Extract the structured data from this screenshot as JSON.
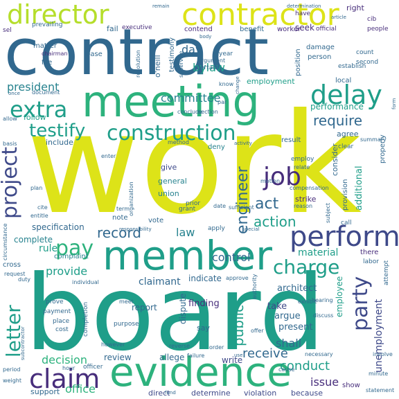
{
  "palette": {
    "yellow": "#dde318",
    "yellow_green": "#b5de2b",
    "lime": "#7ad151",
    "green": "#52c569",
    "teal_green": "#2db27d",
    "teal": "#1f9e89",
    "cyan_blue": "#26828e",
    "steel_blue": "#31688e",
    "indigo": "#3e4989",
    "purple": "#472d7b",
    "dark_purple": "#440154"
  },
  "words": [
    {
      "text": "work",
      "color": "yellow"
    },
    {
      "text": "board",
      "color": "teal"
    },
    {
      "text": "contract",
      "color": "steel_blue"
    },
    {
      "text": "meeting",
      "color": "teal_green"
    },
    {
      "text": "member",
      "color": "teal"
    },
    {
      "text": "evidence",
      "color": "teal_green"
    },
    {
      "text": "contractor",
      "color": "yellow"
    },
    {
      "text": "director",
      "color": "yellow_green"
    },
    {
      "text": "perform",
      "color": "indigo"
    },
    {
      "text": "construction",
      "color": "teal"
    },
    {
      "text": "project",
      "color": "indigo"
    },
    {
      "text": "claim",
      "color": "purple"
    },
    {
      "text": "delay",
      "color": "teal"
    },
    {
      "text": "extra",
      "color": "teal"
    },
    {
      "text": "testify",
      "color": "teal"
    },
    {
      "text": "job",
      "color": "purple"
    },
    {
      "text": "pay",
      "color": "teal_green"
    },
    {
      "text": "charge",
      "color": "teal"
    },
    {
      "text": "party",
      "color": "indigo"
    },
    {
      "text": "letter",
      "color": "teal"
    },
    {
      "text": "engineer",
      "color": "steel_blue"
    },
    {
      "text": "act",
      "color": "steel_blue"
    },
    {
      "text": "action",
      "color": "teal"
    },
    {
      "text": "public",
      "color": "teal"
    },
    {
      "text": "record",
      "color": "steel_blue"
    },
    {
      "text": "require",
      "color": "steel_blue"
    },
    {
      "text": "committee",
      "color": "cyan_blue"
    },
    {
      "text": "president",
      "color": "cyan_blue"
    },
    {
      "text": "employee",
      "color": "teal"
    },
    {
      "text": "unemployment",
      "color": "indigo"
    },
    {
      "text": "decision",
      "color": "teal_green"
    },
    {
      "text": "conduct",
      "color": "teal"
    },
    {
      "text": "receive",
      "color": "steel_blue"
    },
    {
      "text": "office",
      "color": "teal_green"
    },
    {
      "text": "issue",
      "color": "purple"
    },
    {
      "text": "shall",
      "color": "steel_blue"
    },
    {
      "text": "material",
      "color": "teal"
    },
    {
      "text": "control",
      "color": "steel_blue"
    },
    {
      "text": "law",
      "color": "cyan_blue"
    },
    {
      "text": "provide",
      "color": "teal"
    },
    {
      "text": "rule",
      "color": "teal"
    },
    {
      "text": "bylaw",
      "color": "teal"
    },
    {
      "text": "day",
      "color": "steel_blue"
    },
    {
      "text": "employment",
      "color": "teal"
    },
    {
      "text": "performance",
      "color": "teal"
    },
    {
      "text": "additional",
      "color": "teal"
    },
    {
      "text": "claimant",
      "color": "steel_blue"
    },
    {
      "text": "architect",
      "color": "steel_blue"
    },
    {
      "text": "finding",
      "color": "purple"
    },
    {
      "text": "argue",
      "color": "steel_blue"
    },
    {
      "text": "present",
      "color": "steel_blue"
    },
    {
      "text": "take",
      "color": "indigo"
    },
    {
      "text": "dispute",
      "color": "steel_blue"
    },
    {
      "text": "report",
      "color": "steel_blue"
    },
    {
      "text": "indicate",
      "color": "steel_blue"
    },
    {
      "text": "write",
      "color": "indigo"
    },
    {
      "text": "allege",
      "color": "steel_blue"
    },
    {
      "text": "review",
      "color": "steel_blue"
    },
    {
      "text": "support",
      "color": "steel_blue"
    },
    {
      "text": "determine",
      "color": "indigo"
    },
    {
      "text": "violation",
      "color": "indigo"
    },
    {
      "text": "because",
      "color": "indigo"
    },
    {
      "text": "direct",
      "color": "indigo"
    },
    {
      "text": "specification",
      "color": "steel_blue"
    },
    {
      "text": "complete",
      "color": "cyan_blue"
    },
    {
      "text": "complaint",
      "color": "cyan_blue"
    },
    {
      "text": "include",
      "color": "steel_blue"
    },
    {
      "text": "follow",
      "color": "teal"
    },
    {
      "text": "give",
      "color": "indigo"
    },
    {
      "text": "general",
      "color": "cyan_blue"
    },
    {
      "text": "union",
      "color": "cyan_blue"
    },
    {
      "text": "vote",
      "color": "steel_blue"
    },
    {
      "text": "note",
      "color": "steel_blue"
    },
    {
      "text": "deny",
      "color": "cyan_blue"
    },
    {
      "text": "result",
      "color": "steel_blue"
    },
    {
      "text": "agree",
      "color": "steel_blue"
    },
    {
      "text": "local",
      "color": "steel_blue"
    },
    {
      "text": "strike",
      "color": "purple"
    },
    {
      "text": "seek",
      "color": "purple"
    },
    {
      "text": "worker",
      "color": "purple"
    },
    {
      "text": "benefit",
      "color": "steel_blue"
    },
    {
      "text": "contend",
      "color": "purple"
    },
    {
      "text": "damage",
      "color": "steel_blue"
    },
    {
      "text": "person",
      "color": "steel_blue"
    },
    {
      "text": "position",
      "color": "steel_blue"
    },
    {
      "text": "matter",
      "color": "steel_blue"
    },
    {
      "text": "file",
      "color": "steel_blue"
    },
    {
      "text": "fail",
      "color": "steel_blue"
    },
    {
      "text": "prevailing",
      "color": "steel_blue"
    },
    {
      "text": "executive",
      "color": "purple"
    },
    {
      "text": "testimony",
      "color": "steel_blue"
    },
    {
      "text": "o'neill",
      "color": "steel_blue"
    },
    {
      "text": "right",
      "color": "purple"
    },
    {
      "text": "official",
      "color": "purple"
    },
    {
      "text": "chairman",
      "color": "purple"
    },
    {
      "text": "base",
      "color": "steel_blue"
    },
    {
      "text": "year",
      "color": "steel_blue"
    },
    {
      "text": "certain",
      "color": "steel_blue"
    },
    {
      "text": "argument",
      "color": "steel_blue"
    },
    {
      "text": "supervise",
      "color": "steel_blue"
    },
    {
      "text": "establish",
      "color": "steel_blue"
    },
    {
      "text": "count",
      "color": "steel_blue"
    },
    {
      "text": "second",
      "color": "steel_blue"
    },
    {
      "text": "cib",
      "color": "purple"
    },
    {
      "text": "people",
      "color": "purple"
    },
    {
      "text": "have",
      "color": "purple"
    },
    {
      "text": "sel",
      "color": "purple"
    },
    {
      "text": "consider",
      "color": "steel_blue"
    },
    {
      "text": "properly",
      "color": "steel_blue"
    },
    {
      "text": "provision",
      "color": "steel_blue"
    },
    {
      "text": "employ",
      "color": "steel_blue"
    },
    {
      "text": "compensation",
      "color": "steel_blue"
    },
    {
      "text": "reason",
      "color": "steel_blue"
    },
    {
      "text": "organization",
      "color": "steel_blue"
    },
    {
      "text": "prior",
      "color": "steel_blue"
    },
    {
      "text": "grant",
      "color": "steel_blue"
    },
    {
      "text": "apply",
      "color": "steel_blue"
    },
    {
      "text": "call",
      "color": "steel_blue"
    },
    {
      "text": "labor",
      "color": "steel_blue"
    },
    {
      "text": "there",
      "color": "purple"
    },
    {
      "text": "cross",
      "color": "steel_blue"
    },
    {
      "text": "duty",
      "color": "steel_blue"
    },
    {
      "text": "request",
      "color": "steel_blue"
    },
    {
      "text": "individual",
      "color": "steel_blue"
    },
    {
      "text": "prove",
      "color": "steel_blue"
    },
    {
      "text": "payment",
      "color": "steel_blue"
    },
    {
      "text": "place",
      "color": "steel_blue"
    },
    {
      "text": "cost",
      "color": "steel_blue"
    },
    {
      "text": "purpose",
      "color": "steel_blue"
    },
    {
      "text": "meet",
      "color": "steel_blue"
    },
    {
      "text": "completion",
      "color": "steel_blue"
    },
    {
      "text": "however",
      "color": "steel_blue"
    },
    {
      "text": "officer",
      "color": "steel_blue"
    },
    {
      "text": "hour",
      "color": "steel_blue"
    },
    {
      "text": "period",
      "color": "steel_blue"
    },
    {
      "text": "weight",
      "color": "steel_blue"
    },
    {
      "text": "failure",
      "color": "steel_blue"
    },
    {
      "text": "say",
      "color": "steel_blue"
    },
    {
      "text": "hearing",
      "color": "steel_blue"
    },
    {
      "text": "exhibit",
      "color": "steel_blue"
    },
    {
      "text": "discuss",
      "color": "steel_blue"
    },
    {
      "text": "necessary",
      "color": "steel_blue"
    },
    {
      "text": "minute",
      "color": "steel_blue"
    },
    {
      "text": "show",
      "color": "purple"
    },
    {
      "text": "statement",
      "color": "steel_blue"
    },
    {
      "text": "cause",
      "color": "steel_blue"
    },
    {
      "text": "involve",
      "color": "steel_blue"
    },
    {
      "text": "method",
      "color": "steel_blue"
    },
    {
      "text": "enter",
      "color": "steel_blue"
    },
    {
      "text": "conclude",
      "color": "steel_blue"
    },
    {
      "text": "section",
      "color": "steel_blue"
    },
    {
      "text": "document",
      "color": "steel_blue"
    },
    {
      "text": "allow",
      "color": "steel_blue"
    },
    {
      "text": "know",
      "color": "steel_blue"
    },
    {
      "text": "attempt",
      "color": "steel_blue"
    },
    {
      "text": "approve",
      "color": "steel_blue"
    },
    {
      "text": "authority",
      "color": "steel_blue"
    },
    {
      "text": "term",
      "color": "steel_blue"
    },
    {
      "text": "cite",
      "color": "steel_blue"
    },
    {
      "text": "entitle",
      "color": "steel_blue"
    },
    {
      "text": "plan",
      "color": "steel_blue"
    },
    {
      "text": "relate",
      "color": "steel_blue"
    },
    {
      "text": "motion",
      "color": "steel_blue"
    },
    {
      "text": "subject",
      "color": "steel_blue"
    },
    {
      "text": "date",
      "color": "steel_blue"
    },
    {
      "text": "sufficient",
      "color": "steel_blue"
    },
    {
      "text": "clear",
      "color": "steel_blue"
    },
    {
      "text": "summary",
      "color": "steel_blue"
    },
    {
      "text": "resolution",
      "color": "steel_blue"
    },
    {
      "text": "offer",
      "color": "steel_blue"
    },
    {
      "text": "reverse",
      "color": "steel_blue"
    },
    {
      "text": "order",
      "color": "steel_blue"
    },
    {
      "text": "basis",
      "color": "steel_blue"
    },
    {
      "text": "circumstance",
      "color": "steel_blue"
    },
    {
      "text": "determination",
      "color": "steel_blue"
    },
    {
      "text": "remain",
      "color": "steel_blue"
    },
    {
      "text": "form",
      "color": "steel_blue"
    },
    {
      "text": "body",
      "color": "steel_blue"
    },
    {
      "text": "article",
      "color": "steel_blue"
    },
    {
      "text": "change",
      "color": "steel_blue"
    },
    {
      "text": "par",
      "color": "steel_blue"
    },
    {
      "text": "activity",
      "color": "steel_blue"
    },
    {
      "text": "subcontractor",
      "color": "steel_blue"
    },
    {
      "text": "responsibility",
      "color": "steel_blue"
    },
    {
      "text": "fund",
      "color": "steel_blue"
    },
    {
      "text": "use",
      "color": "steel_blue"
    },
    {
      "text": "once",
      "color": "steel_blue"
    },
    {
      "text": "special",
      "color": "steel_blue"
    }
  ]
}
